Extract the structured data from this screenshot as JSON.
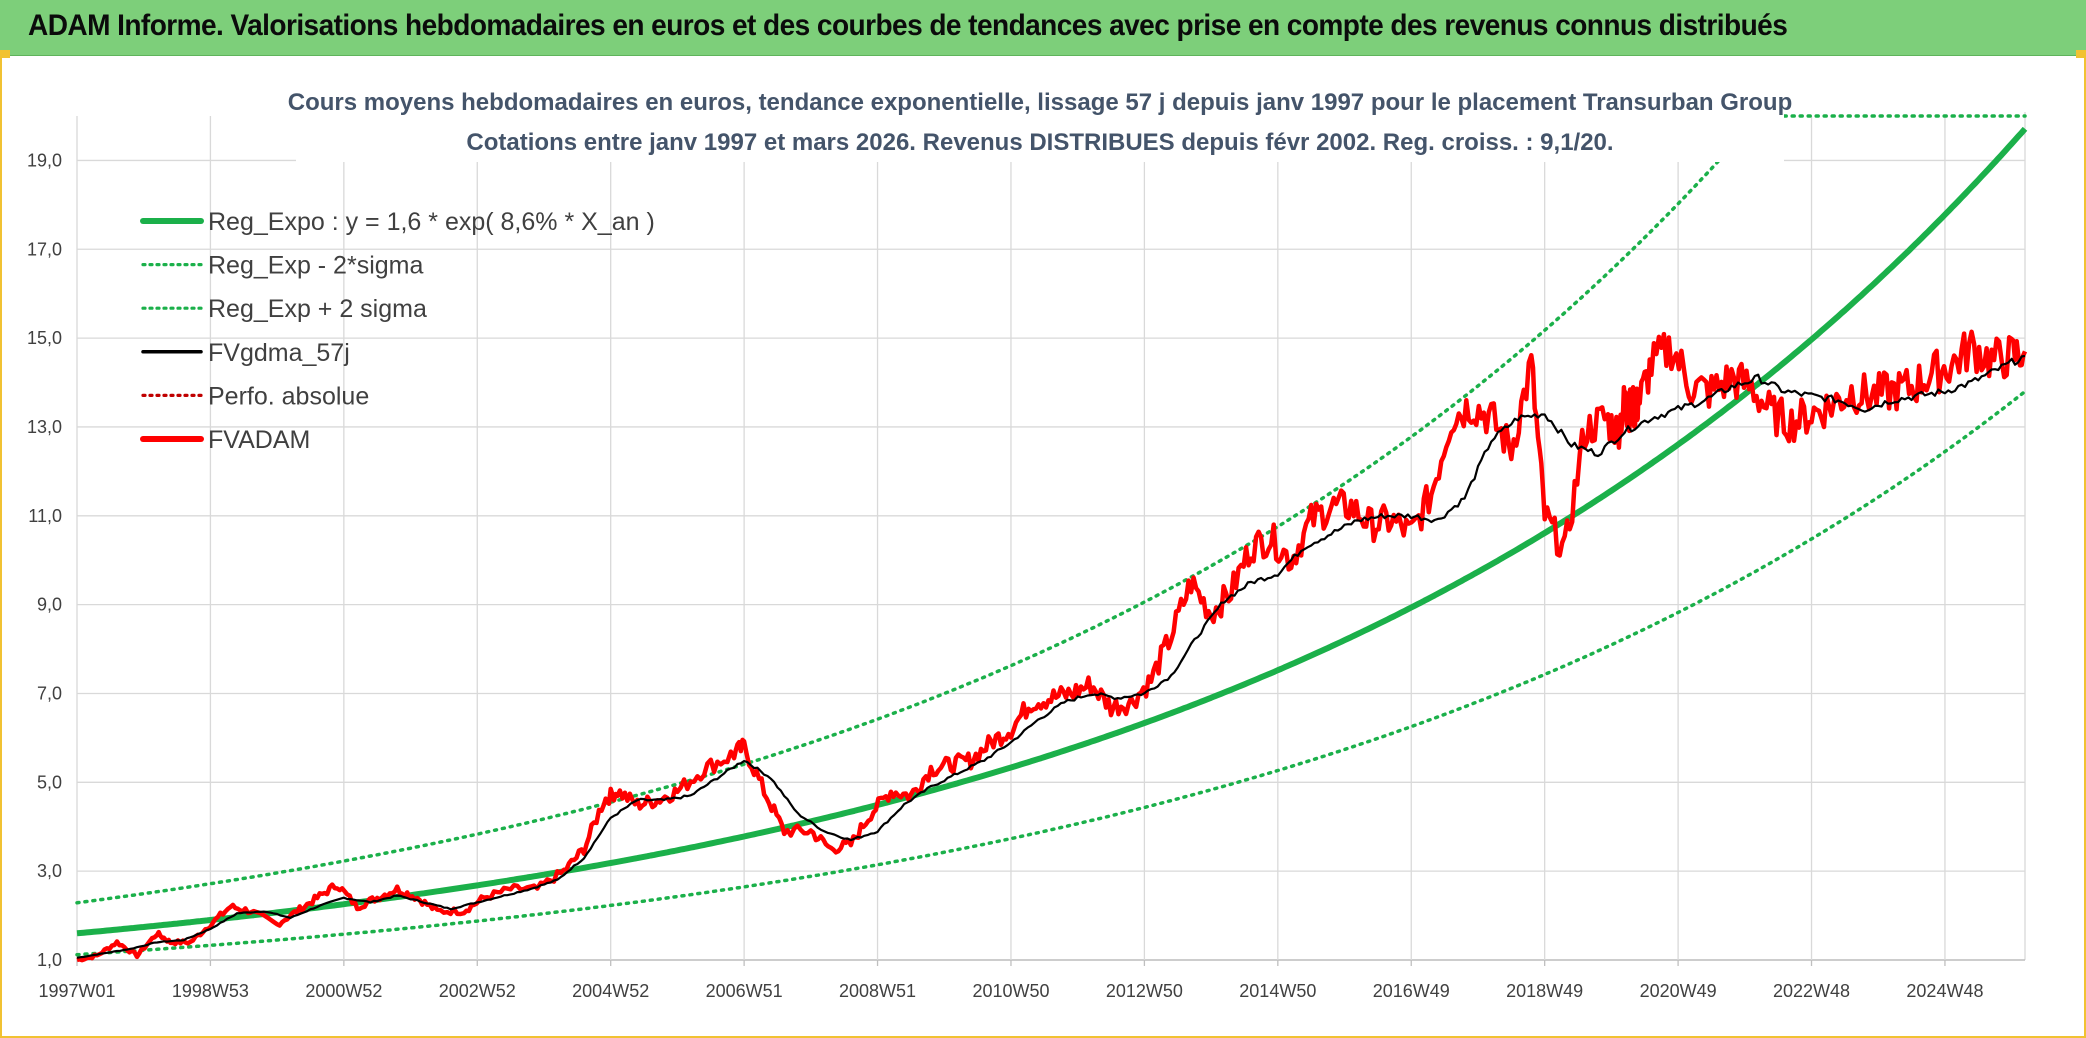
{
  "header": {
    "banner_title": "ADAM Informe. Valorisations hebdomadaires en euros et des courbes de tendances avec prise en compte des revenus connus distribués"
  },
  "colors": {
    "banner_bg": "#7dcf7a",
    "frame": "#f1c232",
    "trend_green": "#1bb04a",
    "price_red": "#ff0000",
    "smooth_black": "#000000",
    "title_text": "#44546a"
  },
  "chart_data": {
    "type": "line",
    "title_lines": [
      "Cours moyens hebdomadaires en euros, tendance exponentielle, lissage 57 j depuis janv 1997 pour le placement Transurban Group",
      "Cotations entre janv 1997 et mars 2026. Revenus DISTRIBUES depuis févr 2002. Reg. croiss. : 9,1/20."
    ],
    "xlabel": "",
    "ylabel": "",
    "xlim": [
      1997.0,
      2026.2
    ],
    "ylim": [
      1.0,
      20.0
    ],
    "yticks": [
      "1,0",
      "3,0",
      "5,0",
      "7,0",
      "9,0",
      "11,0",
      "13,0",
      "15,0",
      "17,0",
      "19,0"
    ],
    "xticks": [
      {
        "label": "1997W01",
        "x": 1997.0
      },
      {
        "label": "1998W53",
        "x": 1999.0
      },
      {
        "label": "2000W52",
        "x": 2001.0
      },
      {
        "label": "2002W52",
        "x": 2003.0
      },
      {
        "label": "2004W52",
        "x": 2005.0
      },
      {
        "label": "2006W51",
        "x": 2007.0
      },
      {
        "label": "2008W51",
        "x": 2009.0
      },
      {
        "label": "2010W50",
        "x": 2011.0
      },
      {
        "label": "2012W50",
        "x": 2013.0
      },
      {
        "label": "2014W50",
        "x": 2015.0
      },
      {
        "label": "2016W49",
        "x": 2017.0
      },
      {
        "label": "2018W49",
        "x": 2019.0
      },
      {
        "label": "2020W49",
        "x": 2021.0
      },
      {
        "label": "2022W48",
        "x": 2023.0
      },
      {
        "label": "2024W48",
        "x": 2025.0
      }
    ],
    "grid": true,
    "legend_position": "top-left",
    "legend": [
      {
        "name": "Reg_Expo : y = 1,6 * exp( 8,6% *  X_an )",
        "style": "solid-thick",
        "color": "#1bb04a"
      },
      {
        "name": "Reg_Exp - 2*sigma",
        "style": "dotted",
        "color": "#1bb04a"
      },
      {
        "name": "Reg_Exp + 2 sigma",
        "style": "dotted",
        "color": "#1bb04a"
      },
      {
        "name": "FVgdma_57j",
        "style": "solid",
        "color": "#000000"
      },
      {
        "name": "Perfo. absolue",
        "style": "dotted",
        "color": "#c00000"
      },
      {
        "name": "FVADAM",
        "style": "solid-thick",
        "color": "#ff0000"
      }
    ],
    "trend": {
      "start_year": 1997.0,
      "a": 1.6,
      "k": 0.086,
      "lower_factor": 0.7,
      "upper_factor": 1.43
    },
    "series": [
      {
        "name": "FVADAM",
        "x": [
          1997.0,
          1997.3,
          1997.6,
          1997.9,
          1998.2,
          1998.4,
          1998.7,
          1999.0,
          1999.3,
          1999.6,
          2000.0,
          2000.3,
          2000.6,
          2000.9,
          2001.2,
          2001.5,
          2001.8,
          2002.1,
          2002.4,
          2002.8,
          2003.1,
          2003.5,
          2003.9,
          2004.3,
          2004.6,
          2004.9,
          2005.1,
          2005.4,
          2005.7,
          2006.0,
          2006.4,
          2006.8,
          2007.0,
          2007.3,
          2007.6,
          2008.0,
          2008.3,
          2008.6,
          2008.9,
          2009.2,
          2009.5,
          2009.8,
          2010.1,
          2010.4,
          2010.7,
          2011.0,
          2011.3,
          2011.6,
          2011.9,
          2012.2,
          2012.5,
          2012.8,
          2013.1,
          2013.4,
          2013.7,
          2014.0,
          2014.3,
          2014.6,
          2014.9,
          2015.2,
          2015.5,
          2015.8,
          2016.1,
          2016.4,
          2016.7,
          2017.0,
          2017.3,
          2017.6,
          2017.9,
          2018.2,
          2018.5,
          2018.8,
          2019.0,
          2019.3,
          2019.6,
          2019.9,
          2020.1,
          2020.2,
          2020.25,
          2020.3,
          2020.35,
          2020.4,
          2020.6,
          2020.9,
          2021.2,
          2021.5,
          2021.8,
          2022.1,
          2022.4,
          2022.7,
          2023.0,
          2023.3,
          2023.6,
          2023.9,
          2024.2,
          2024.5,
          2024.8,
          2025.1,
          2025.4,
          2025.7,
          2026.0,
          2026.2
        ],
        "values": [
          1.0,
          1.1,
          1.4,
          1.1,
          1.6,
          1.4,
          1.4,
          1.8,
          2.2,
          2.1,
          1.8,
          2.1,
          2.4,
          2.7,
          2.2,
          2.4,
          2.6,
          2.4,
          2.1,
          2.1,
          2.4,
          2.6,
          2.6,
          3.0,
          3.5,
          4.6,
          4.8,
          4.5,
          4.6,
          4.8,
          5.3,
          5.6,
          5.8,
          4.8,
          3.9,
          3.9,
          3.5,
          3.6,
          4.3,
          4.8,
          4.7,
          5.3,
          5.4,
          5.5,
          5.9,
          6.2,
          6.8,
          6.9,
          7.0,
          7.2,
          6.7,
          6.8,
          7.3,
          8.3,
          9.5,
          8.8,
          9.3,
          10.3,
          10.5,
          10.0,
          10.9,
          11.2,
          11.2,
          10.8,
          10.9,
          10.6,
          11.5,
          13.2,
          13.5,
          13.2,
          12.5,
          14.4,
          11.0,
          10.2,
          12.9,
          13.2,
          12.9,
          13.6,
          13.3,
          13.5,
          13.4,
          13.5,
          14.4,
          14.8,
          13.9,
          13.8,
          14.1,
          13.9,
          13.3,
          13.1,
          13.3,
          13.5,
          13.8,
          13.7,
          13.8,
          13.9,
          14.2,
          14.4,
          14.8,
          14.5,
          14.6,
          14.7
        ]
      },
      {
        "name": "FVgdma_57j",
        "x": [
          1997.0,
          1997.4,
          1997.8,
          1998.2,
          1998.6,
          1999.0,
          1999.4,
          1999.8,
          2000.2,
          2000.6,
          2001.0,
          2001.4,
          2001.8,
          2002.2,
          2002.6,
          2003.0,
          2003.4,
          2003.8,
          2004.2,
          2004.6,
          2005.0,
          2005.4,
          2005.8,
          2006.2,
          2006.6,
          2007.0,
          2007.4,
          2007.8,
          2008.2,
          2008.6,
          2009.0,
          2009.4,
          2009.8,
          2010.2,
          2010.6,
          2011.0,
          2011.4,
          2011.8,
          2012.2,
          2012.6,
          2013.0,
          2013.4,
          2013.8,
          2014.2,
          2014.6,
          2015.0,
          2015.4,
          2015.8,
          2016.2,
          2016.6,
          2017.0,
          2017.4,
          2017.8,
          2018.2,
          2018.6,
          2019.0,
          2019.4,
          2019.8,
          2020.2,
          2020.6,
          2021.0,
          2021.4,
          2021.8,
          2022.2,
          2022.6,
          2023.0,
          2023.4,
          2023.8,
          2024.2,
          2024.6,
          2025.0,
          2025.4,
          2025.8,
          2026.2
        ],
        "values": [
          1.05,
          1.15,
          1.25,
          1.4,
          1.45,
          1.7,
          2.05,
          2.1,
          1.95,
          2.2,
          2.4,
          2.3,
          2.45,
          2.3,
          2.15,
          2.3,
          2.45,
          2.6,
          2.8,
          3.3,
          4.2,
          4.6,
          4.6,
          4.7,
          5.1,
          5.5,
          5.1,
          4.3,
          3.9,
          3.7,
          3.9,
          4.5,
          4.9,
          5.2,
          5.5,
          5.9,
          6.4,
          6.8,
          7.0,
          6.9,
          7.0,
          7.4,
          8.3,
          9.1,
          9.5,
          9.7,
          10.3,
          10.6,
          10.9,
          11.0,
          11.0,
          10.9,
          11.4,
          12.7,
          13.2,
          13.3,
          12.6,
          12.4,
          12.9,
          13.2,
          13.4,
          13.6,
          13.9,
          14.1,
          13.8,
          13.7,
          13.6,
          13.4,
          13.6,
          13.7,
          13.8,
          14.0,
          14.3,
          14.6
        ]
      }
    ]
  }
}
